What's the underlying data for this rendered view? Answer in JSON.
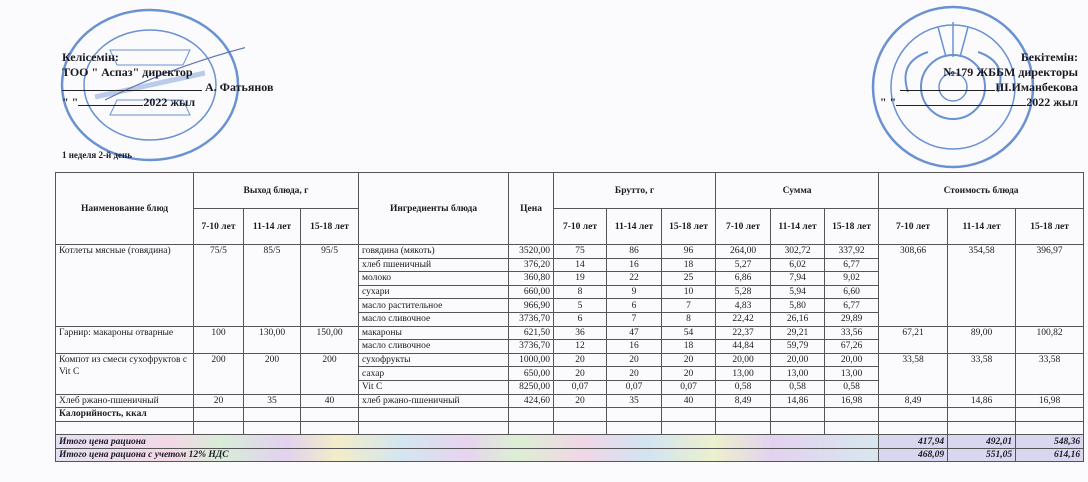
{
  "approval_left": {
    "title": "Келісемін:",
    "position": "ТОО  \" Аспаз\" директор",
    "name": "А. Фатьянов",
    "date_quotes": "\"         \"",
    "year": "2022 жыл",
    "stamp_text": "Қазақстан Республикасы Алматы қаласы · АСПАЗ · город Алматы Республика Казахстан"
  },
  "approval_right": {
    "title": "Бекітемін:",
    "position": "№179 ЖББМ директоры",
    "name": "Ш.Иманбекова",
    "date_quotes": "\"         \"",
    "year": "2022 жыл",
    "stamp_text": "№179 ЖАЛПЫ БІЛІМ БЕРЕТІН МЕКТЕБІ · БСН 130240000974"
  },
  "week_day": "1 неделя 2-й день",
  "stamp_color": "#3a6fc4",
  "table": {
    "headers": {
      "dish": "Наименование блюд",
      "yield": "Выход блюда, г",
      "ingredients": "Ингредиенты блюда",
      "price": "Цена",
      "gross": "Брутто, г",
      "sum": "Сумма",
      "cost": "Стоимость блюда",
      "ages": [
        "7-10 лет",
        "11-14 лет",
        "15-18 лет"
      ]
    },
    "dishes": [
      {
        "name": "Котлеты мясные (говядина)",
        "yield": [
          "75/5",
          "85/5",
          "95/5"
        ],
        "cost": [
          "308,66",
          "354,58",
          "396,97"
        ],
        "ingredients": [
          {
            "name": "говядина (мякоть)",
            "price": "3520,00",
            "gross": [
              "75",
              "86",
              "96"
            ],
            "sum": [
              "264,00",
              "302,72",
              "337,92"
            ]
          },
          {
            "name": "хлеб пшеничный",
            "price": "376,20",
            "gross": [
              "14",
              "16",
              "18"
            ],
            "sum": [
              "5,27",
              "6,02",
              "6,77"
            ]
          },
          {
            "name": "молоко",
            "price": "360,80",
            "gross": [
              "19",
              "22",
              "25"
            ],
            "sum": [
              "6,86",
              "7,94",
              "9,02"
            ]
          },
          {
            "name": "сухари",
            "price": "660,00",
            "gross": [
              "8",
              "9",
              "10"
            ],
            "sum": [
              "5,28",
              "5,94",
              "6,60"
            ]
          },
          {
            "name": "масло растительное",
            "price": "966,90",
            "gross": [
              "5",
              "6",
              "7"
            ],
            "sum": [
              "4,83",
              "5,80",
              "6,77"
            ]
          },
          {
            "name": "масло сливочное",
            "price": "3736,70",
            "gross": [
              "6",
              "7",
              "8"
            ],
            "sum": [
              "22,42",
              "26,16",
              "29,89"
            ]
          }
        ]
      },
      {
        "name": "Гарнир: макароны отварные",
        "yield": [
          "100",
          "130,00",
          "150,00"
        ],
        "cost": [
          "67,21",
          "89,00",
          "100,82"
        ],
        "ingredients": [
          {
            "name": "макароны",
            "price": "621,50",
            "gross": [
              "36",
              "47",
              "54"
            ],
            "sum": [
              "22,37",
              "29,21",
              "33,56"
            ]
          },
          {
            "name": "масло сливочное",
            "price": "3736,70",
            "gross": [
              "12",
              "16",
              "18"
            ],
            "sum": [
              "44,84",
              "59,79",
              "67,26"
            ]
          }
        ]
      },
      {
        "name": "Компот из смеси сухофруктов с Vit C",
        "yield": [
          "200",
          "200",
          "200"
        ],
        "cost": [
          "33,58",
          "33,58",
          "33,58"
        ],
        "ingredients": [
          {
            "name": "сухофрукты",
            "price": "1000,00",
            "gross": [
              "20",
              "20",
              "20"
            ],
            "sum": [
              "20,00",
              "20,00",
              "20,00"
            ]
          },
          {
            "name": "сахар",
            "price": "650,00",
            "gross": [
              "20",
              "20",
              "20"
            ],
            "sum": [
              "13,00",
              "13,00",
              "13,00"
            ]
          },
          {
            "name": "Vit C",
            "price": "8250,00",
            "gross": [
              "0,07",
              "0,07",
              "0,07"
            ],
            "sum": [
              "0,58",
              "0,58",
              "0,58"
            ]
          }
        ]
      },
      {
        "name": "Хлеб ржано-пшеничный",
        "yield": [
          "20",
          "35",
          "40"
        ],
        "cost": [
          "8,49",
          "14,86",
          "16,98"
        ],
        "ingredients": [
          {
            "name": "хлеб ржано-пшеничный",
            "price": "424,60",
            "gross": [
              "20",
              "35",
              "40"
            ],
            "sum": [
              "8,49",
              "14,86",
              "16,98"
            ]
          }
        ]
      }
    ],
    "calories_label": "Калорийность, ккал",
    "totals": [
      {
        "label": "Итого цена рациона",
        "values": [
          "417,94",
          "492,01",
          "548,36"
        ]
      },
      {
        "label": "Итого цена рациона с учетом 12% НДС",
        "values": [
          "468,09",
          "551,05",
          "614,16"
        ]
      }
    ]
  }
}
